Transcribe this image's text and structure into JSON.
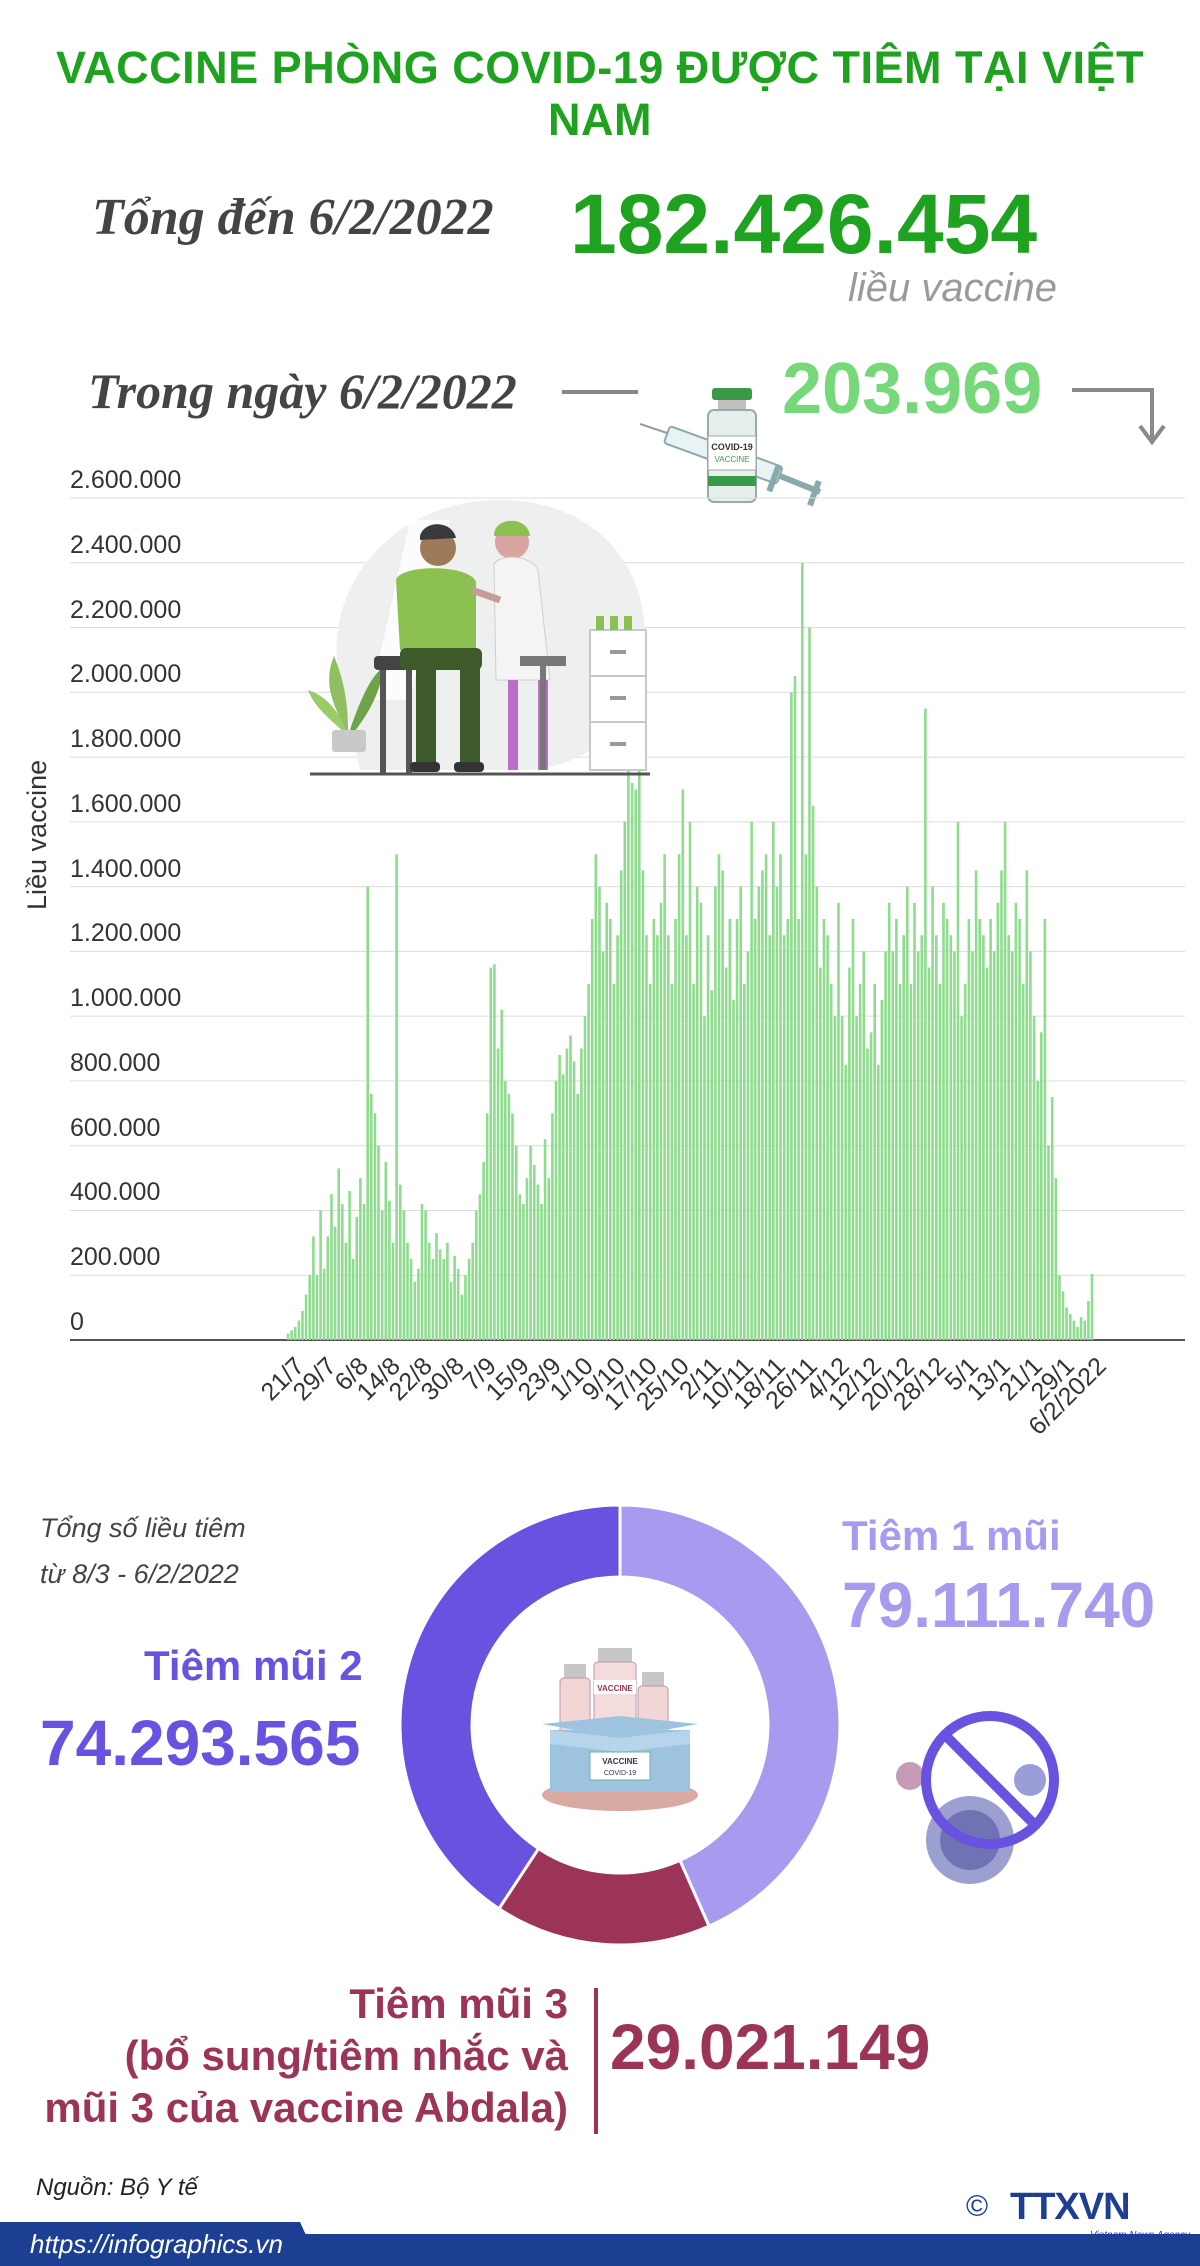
{
  "title": "VACCINE PHÒNG COVID-19 ĐƯỢC TIÊM TẠI VIỆT NAM",
  "summary": {
    "total_label": "Tổng đến 6/2/2022",
    "total_value": "182.426.454",
    "total_unit": "liều vaccine",
    "day_label": "Trong ngày 6/2/2022",
    "day_value": "203.969"
  },
  "colors": {
    "title_green": "#1fa21f",
    "bar_green": "#8fdc8f",
    "dose1": "#a69bef",
    "dose2": "#6a52e0",
    "dose3": "#9b3458",
    "brand_blue": "#1c3f94"
  },
  "chart_data": [
    {
      "type": "bar",
      "ylabel": "Liều vaccine",
      "ylim": [
        0,
        2600000
      ],
      "yticks": [
        "0",
        "200.000",
        "400.000",
        "600.000",
        "800.000",
        "1.000.000",
        "1.200.000",
        "1.400.000",
        "1.600.000",
        "1.800.000",
        "2.000.000",
        "2.200.000",
        "2.400.000",
        "2.600.000"
      ],
      "x_tick_labels": [
        "21/7",
        "29/7",
        "6/8",
        "14/8",
        "22/8",
        "30/8",
        "7/9",
        "15/9",
        "23/9",
        "1/10",
        "9/10",
        "17/10",
        "25/10",
        "2/11",
        "10/11",
        "18/11",
        "26/11",
        "4/12",
        "12/12",
        "20/12",
        "28/12",
        "5/1",
        "13/1",
        "21/1",
        "29/1",
        "6/2/2022"
      ],
      "grid": true,
      "series": [
        {
          "values": [
            20000,
            30000,
            40000,
            60000,
            90000,
            140000,
            200000,
            320000,
            200000,
            400000,
            220000,
            320000,
            450000,
            350000,
            530000,
            420000,
            300000,
            460000,
            250000,
            380000,
            500000,
            420000,
            1400000,
            760000,
            700000,
            600000,
            400000,
            550000,
            430000,
            300000,
            1500000,
            480000,
            400000,
            300000,
            250000,
            180000,
            220000,
            420000,
            400000,
            300000,
            250000,
            330000,
            280000,
            250000,
            300000,
            180000,
            260000,
            220000,
            140000,
            200000,
            250000,
            300000,
            400000,
            450000,
            550000,
            700000,
            1150000,
            1160000,
            900000,
            1020000,
            800000,
            760000,
            700000,
            600000,
            450000,
            420000,
            500000,
            600000,
            540000,
            480000,
            420000,
            620000,
            500000,
            700000,
            800000,
            880000,
            820000,
            900000,
            940000,
            860000,
            760000,
            900000,
            1000000,
            1100000,
            1300000,
            1500000,
            1400000,
            1200000,
            1350000,
            1300000,
            1100000,
            1250000,
            1450000,
            1600000,
            1950000,
            1720000,
            1700000,
            1900000,
            1450000,
            1250000,
            1100000,
            1300000,
            1250000,
            1350000,
            1500000,
            1250000,
            1100000,
            1300000,
            1500000,
            1700000,
            1250000,
            1600000,
            1100000,
            1400000,
            1350000,
            1000000,
            1250000,
            1080000,
            1400000,
            1500000,
            1450000,
            1150000,
            1300000,
            1050000,
            1300000,
            1400000,
            1100000,
            1200000,
            1600000,
            1300000,
            1400000,
            1450000,
            1500000,
            1250000,
            1600000,
            1400000,
            1500000,
            1250000,
            1300000,
            2000000,
            2050000,
            1300000,
            2400000,
            1500000,
            2200000,
            1650000,
            1400000,
            1150000,
            1300000,
            1250000,
            1100000,
            1000000,
            1350000,
            1000000,
            850000,
            1150000,
            1300000,
            1000000,
            1100000,
            1200000,
            900000,
            950000,
            1100000,
            850000,
            1050000,
            1200000,
            1350000,
            1200000,
            1300000,
            1100000,
            1250000,
            1400000,
            1100000,
            1350000,
            1200000,
            1250000,
            1950000,
            1150000,
            1400000,
            1250000,
            1100000,
            1350000,
            1300000,
            1250000,
            1200000,
            1600000,
            1000000,
            1100000,
            1300000,
            1200000,
            1450000,
            1300000,
            1250000,
            1150000,
            1300000,
            1200000,
            1350000,
            1450000,
            1600000,
            1250000,
            1200000,
            1350000,
            1300000,
            1100000,
            1450000,
            1200000,
            1000000,
            800000,
            950000,
            1300000,
            600000,
            750000,
            500000,
            200000,
            150000,
            100000,
            80000,
            60000,
            40000,
            70000,
            60000,
            120000,
            203969
          ]
        }
      ]
    },
    {
      "type": "pie",
      "title": "Tổng số liều tiêm\ntừ 8/3 - 6/2/2022",
      "categories": [
        "Tiêm 1 mũi",
        "Tiêm mũi 2",
        "Tiêm mũi 3 (bổ sung/tiêm nhắc và mũi 3 của vaccine Abdala)"
      ],
      "values": [
        79111740,
        74293565,
        29021149
      ]
    }
  ],
  "pie_labels": {
    "caption_line1": "Tổng số liều tiêm",
    "caption_line2": "từ 8/3 - 6/2/2022",
    "dose1_label": "Tiêm 1 mũi",
    "dose1_value": "79.111.740",
    "dose2_label": "Tiêm mũi 2",
    "dose2_value": "74.293.565",
    "dose3_line1": "Tiêm mũi 3",
    "dose3_line2": "(bổ sung/tiêm nhắc và",
    "dose3_line3": "mũi 3 của vaccine Abdala)",
    "dose3_value": "29.021.149"
  },
  "illustrations": {
    "vial_label_1": "COVID-19",
    "vial_label_2": "VACCINE",
    "box_label_1": "VACCINE",
    "box_label_2": "COVID-19"
  },
  "footer": {
    "source": "Nguồn: Bộ Y tế",
    "url": "https://infographics.vn",
    "copyright": "©",
    "brand": "TTXVN",
    "brand_sub": "Vietnam News Agency"
  }
}
